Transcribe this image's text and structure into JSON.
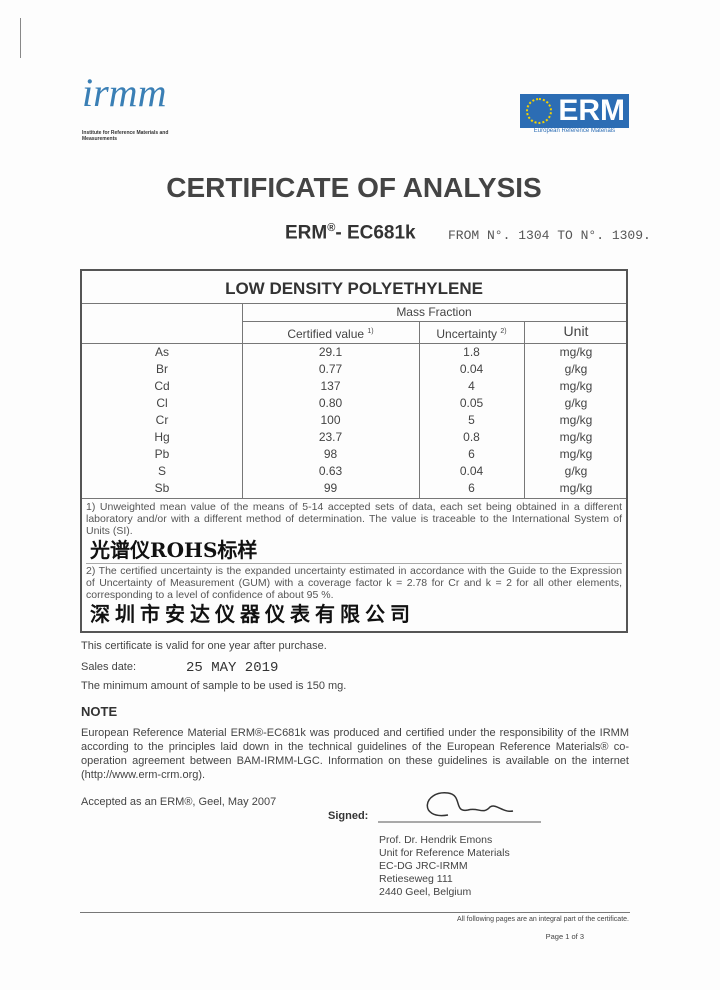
{
  "logos": {
    "irm": {
      "mark": "irmm",
      "subtitle": "Institute for Reference Materials and Measurements"
    },
    "erm": {
      "mark": "ERM",
      "subtitle": "European Reference Materials",
      "color": "#2c6db4"
    }
  },
  "title": "CERTIFICATE OF ANALYSIS",
  "code": {
    "prefix": "ERM",
    "reg": "®",
    "suffix": "- EC681k",
    "from": "FROM N°. 1304 TO N°. 1309."
  },
  "table": {
    "product": "LOW DENSITY POLYETHYLENE",
    "group_header": "Mass Fraction",
    "headers": {
      "value": "Certified value",
      "value_note": "1)",
      "uncertainty": "Uncertainty",
      "unc_note": "2)",
      "unit": "Unit"
    },
    "rows": [
      {
        "element": "As",
        "value": "29.1",
        "uncertainty": "1.8",
        "unit": "mg/kg"
      },
      {
        "element": "Br",
        "value": "0.77",
        "uncertainty": "0.04",
        "unit": "g/kg"
      },
      {
        "element": "Cd",
        "value": "137",
        "uncertainty": "4",
        "unit": "mg/kg"
      },
      {
        "element": "Cl",
        "value": "0.80",
        "uncertainty": "0.05",
        "unit": "g/kg"
      },
      {
        "element": "Cr",
        "value": "100",
        "uncertainty": "5",
        "unit": "mg/kg"
      },
      {
        "element": "Hg",
        "value": "23.7",
        "uncertainty": "0.8",
        "unit": "mg/kg"
      },
      {
        "element": "Pb",
        "value": "98",
        "uncertainty": "6",
        "unit": "mg/kg"
      },
      {
        "element": "S",
        "value": "0.63",
        "uncertainty": "0.04",
        "unit": "g/kg"
      },
      {
        "element": "Sb",
        "value": "99",
        "uncertainty": "6",
        "unit": "mg/kg"
      }
    ],
    "footnote1": "1) Unweighted mean value of the means of 5-14 accepted sets of data, each set being obtained in a different laboratory and/or with a different method of determination. The value is traceable to the International System of Units (SI).",
    "footnote2": "2) The certified uncertainty is the expanded uncertainty estimated in accordance with the Guide to the Expression of Uncertainty of Measurement (GUM) with a coverage factor k = 2.78 for Cr and k = 2 for all other elements, corresponding to a level of confidence of about 95 %."
  },
  "overlay": {
    "line1": "光谱仪ROHS标样",
    "line2": "深圳市安达仪器仪表有限公司"
  },
  "validity": "This certificate is valid for one year after purchase.",
  "sales_label": "Sales date:",
  "sales_date": "25 MAY 2019",
  "min_sample": "The minimum amount of sample to be used is 150 mg.",
  "note_heading": "NOTE",
  "note_body": "European Reference Material ERM®-EC681k was produced and certified under the responsibility of the IRMM according to the principles laid down in the technical guidelines of the European Reference Materials® co-operation agreement between BAM-IRMM-LGC. Information on these guidelines is available on the internet (http://www.erm-crm.org).",
  "accepted": "Accepted as an ERM®, Geel, May 2007",
  "signed_label": "Signed:",
  "signatory": [
    "Prof. Dr. Hendrik Emons",
    "Unit for Reference Materials",
    "EC-DG JRC-IRMM",
    "Retieseweg 111",
    "2440 Geel, Belgium"
  ],
  "integral": "All following pages are an integral part of the certificate.",
  "page": "Page 1 of 3"
}
